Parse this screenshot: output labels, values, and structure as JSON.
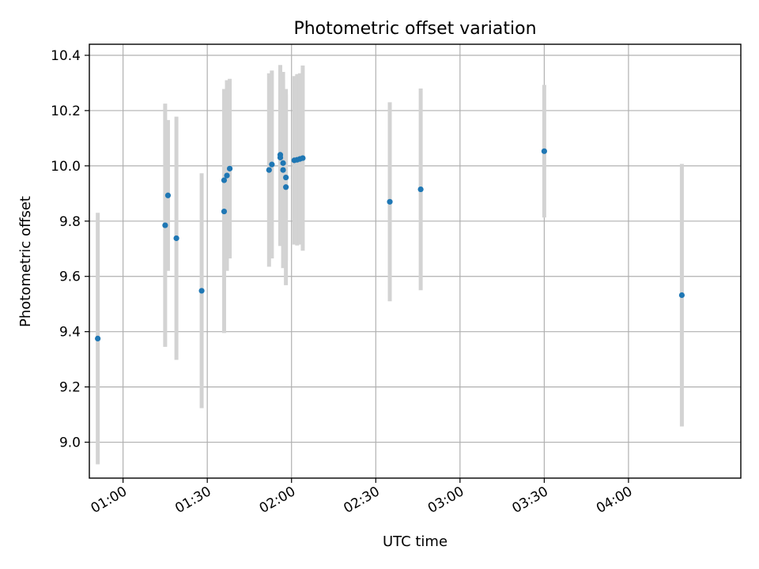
{
  "chart_data": {
    "type": "scatter",
    "title": "Photometric offset variation",
    "xlabel": "UTC time",
    "ylabel": "Photometric offset",
    "x_axis": {
      "scale": "time",
      "range": [
        "00:48",
        "04:40"
      ],
      "ticks": [
        "01:00",
        "01:30",
        "02:00",
        "02:30",
        "03:00",
        "03:30",
        "04:00"
      ],
      "tick_label_rotation": "30-degrees"
    },
    "y_axis": {
      "range": [
        8.87,
        10.44
      ],
      "ticks": [
        9.0,
        9.2,
        9.4,
        9.6,
        9.8,
        10.0,
        10.2,
        10.4
      ],
      "tick_labels": [
        "9.0",
        "9.2",
        "9.4",
        "9.6",
        "9.8",
        "10.0",
        "10.2",
        "10.4"
      ]
    },
    "grid": true,
    "colors": {
      "points": "#1f77b4",
      "error_bars": "#d3d3d3"
    },
    "series": [
      {
        "points": [
          {
            "x": "00:51",
            "y": 9.375,
            "err": 0.455
          },
          {
            "x": "01:15",
            "y": 9.785,
            "err": 0.44
          },
          {
            "x": "01:16",
            "y": 9.893,
            "err": 0.273
          },
          {
            "x": "01:19",
            "y": 9.738,
            "err": 0.44
          },
          {
            "x": "01:28",
            "y": 9.548,
            "err": 0.425
          },
          {
            "x": "01:36",
            "y": 9.835,
            "err": 0.44
          },
          {
            "x": "01:36",
            "y": 9.948,
            "err": 0.33
          },
          {
            "x": "01:37",
            "y": 9.965,
            "err": 0.345
          },
          {
            "x": "01:38",
            "y": 9.99,
            "err": 0.325
          },
          {
            "x": "01:52",
            "y": 9.985,
            "err": 0.35
          },
          {
            "x": "01:53",
            "y": 10.005,
            "err": 0.34
          },
          {
            "x": "01:56",
            "y": 10.04,
            "err": 0.325
          },
          {
            "x": "01:56",
            "y": 10.03,
            "err": 0.32
          },
          {
            "x": "01:57",
            "y": 10.01,
            "err": 0.3
          },
          {
            "x": "01:57",
            "y": 9.985,
            "err": 0.355
          },
          {
            "x": "01:58",
            "y": 9.958,
            "err": 0.3
          },
          {
            "x": "01:58",
            "y": 9.923,
            "err": 0.355
          },
          {
            "x": "02:01",
            "y": 10.02,
            "err": 0.305
          },
          {
            "x": "02:02",
            "y": 10.022,
            "err": 0.31
          },
          {
            "x": "02:03",
            "y": 10.025,
            "err": 0.31
          },
          {
            "x": "02:04",
            "y": 10.028,
            "err": 0.335
          },
          {
            "x": "02:35",
            "y": 9.87,
            "err": 0.36
          },
          {
            "x": "02:46",
            "y": 9.915,
            "err": 0.365
          },
          {
            "x": "03:30",
            "y": 10.053,
            "err": 0.24
          },
          {
            "x": "04:19",
            "y": 9.532,
            "err": 0.475
          }
        ]
      }
    ]
  }
}
